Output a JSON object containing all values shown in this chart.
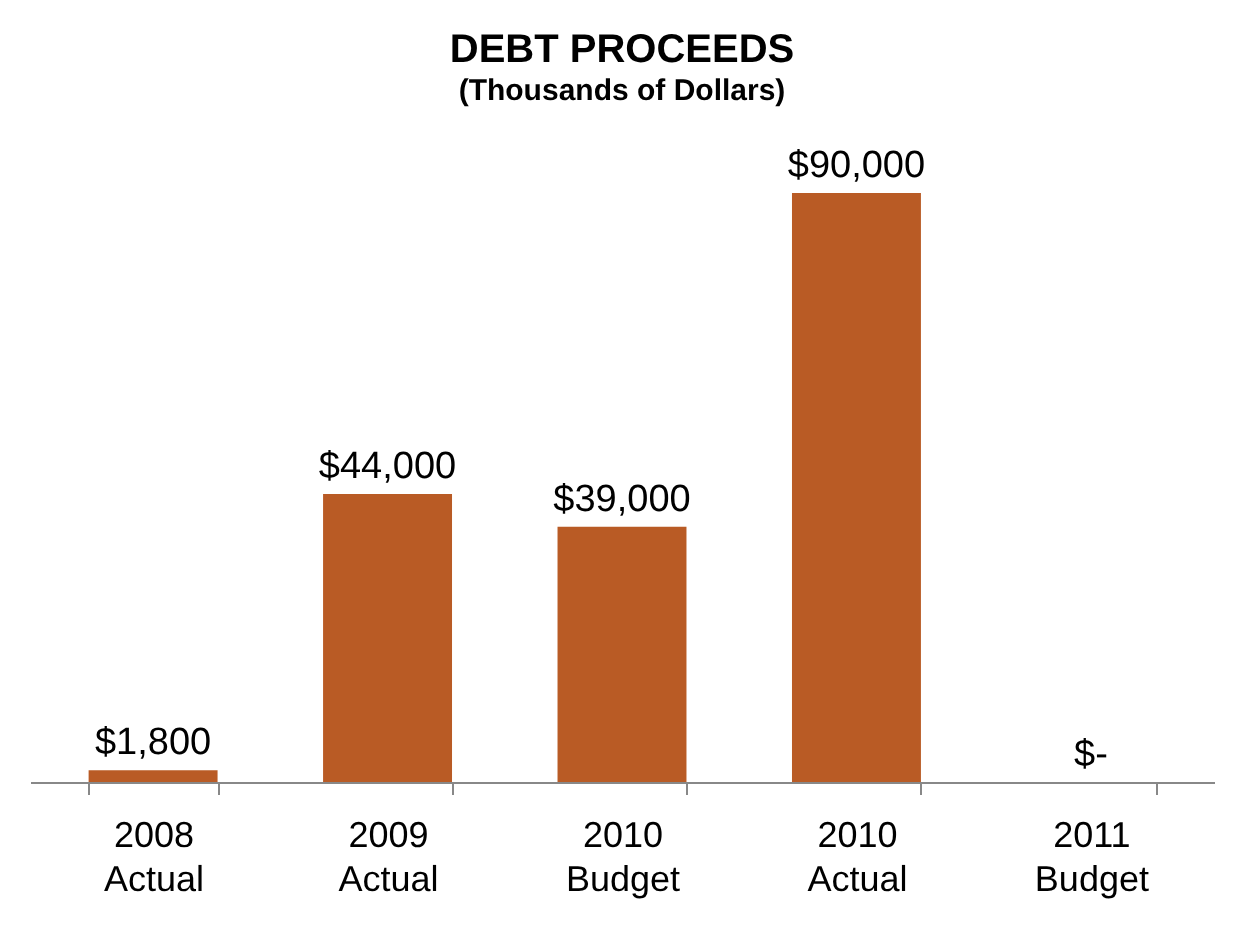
{
  "chart_data": {
    "type": "bar",
    "title": "DEBT PROCEEDS",
    "subtitle": "(Thousands of Dollars)",
    "categories": [
      "2008 Actual",
      "2009 Actual",
      "2010 Budget",
      "2010 Actual",
      "2011 Budget"
    ],
    "values": [
      1800,
      44000,
      39000,
      90000,
      0
    ],
    "value_labels": [
      "$1,800",
      "$44,000",
      "$39,000",
      "$90,000",
      "$-"
    ],
    "color": "#b95b25"
  }
}
